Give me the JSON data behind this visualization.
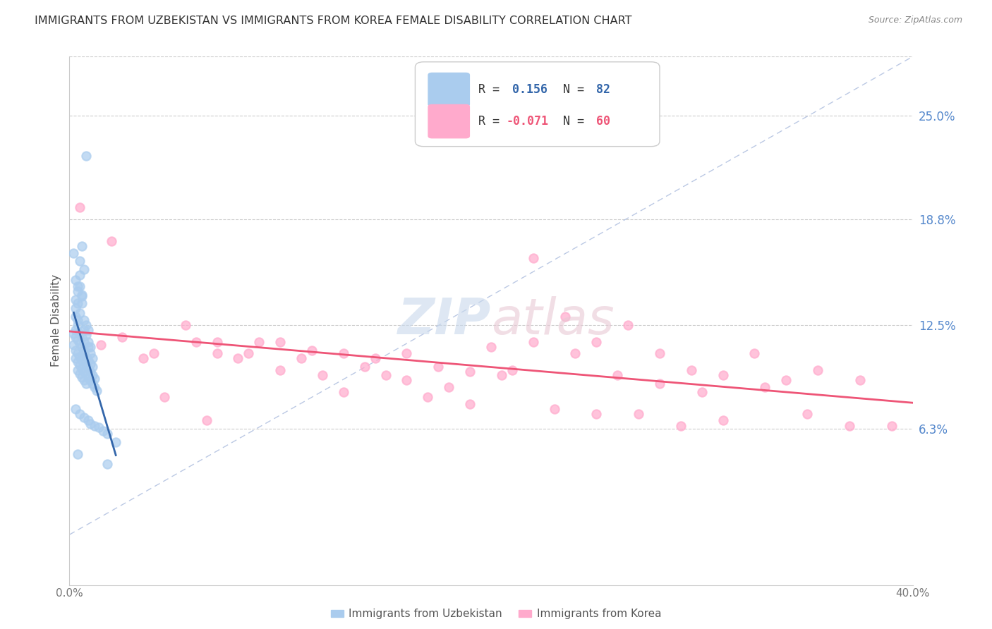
{
  "title": "IMMIGRANTS FROM UZBEKISTAN VS IMMIGRANTS FROM KOREA FEMALE DISABILITY CORRELATION CHART",
  "source": "Source: ZipAtlas.com",
  "ylabel": "Female Disability",
  "ytick_labels": [
    "25.0%",
    "18.8%",
    "12.5%",
    "6.3%"
  ],
  "ytick_values": [
    0.25,
    0.188,
    0.125,
    0.063
  ],
  "xmin": 0.0,
  "xmax": 0.4,
  "ymin": -0.03,
  "ymax": 0.285,
  "legend_r_uzbekistan": "R =  0.156",
  "legend_n_uzbekistan": "N = 82",
  "legend_r_korea": "R = -0.071",
  "legend_n_korea": "N = 60",
  "color_uzbekistan": "#aaccee",
  "color_korea": "#ffaacc",
  "color_uzbekistan_line": "#3366aa",
  "color_korea_line": "#ee5577",
  "color_diagonal_dashed": "#aabbdd",
  "background_color": "#ffffff",
  "legend_r_color_uzbekistan": "#3366aa",
  "legend_n_color_uzbekistan": "#3366aa",
  "legend_r_color_korea": "#ee5577",
  "legend_n_color_korea": "#ee5577",
  "watermark_color": "#dde8f5",
  "uzbekistan_x": [
    0.008,
    0.006,
    0.005,
    0.004,
    0.006,
    0.004,
    0.003,
    0.002,
    0.005,
    0.007,
    0.003,
    0.005,
    0.006,
    0.004,
    0.003,
    0.005,
    0.006,
    0.007,
    0.008,
    0.009,
    0.003,
    0.004,
    0.004,
    0.003,
    0.005,
    0.006,
    0.007,
    0.008,
    0.009,
    0.01,
    0.002,
    0.003,
    0.004,
    0.005,
    0.006,
    0.007,
    0.007,
    0.009,
    0.01,
    0.011,
    0.002,
    0.003,
    0.004,
    0.005,
    0.006,
    0.007,
    0.008,
    0.009,
    0.01,
    0.011,
    0.003,
    0.004,
    0.005,
    0.006,
    0.007,
    0.008,
    0.009,
    0.01,
    0.011,
    0.012,
    0.004,
    0.005,
    0.006,
    0.007,
    0.008,
    0.009,
    0.01,
    0.011,
    0.012,
    0.013,
    0.003,
    0.005,
    0.007,
    0.009,
    0.01,
    0.012,
    0.014,
    0.016,
    0.018,
    0.022,
    0.004,
    0.018
  ],
  "uzbekistan_y": [
    0.226,
    0.172,
    0.155,
    0.148,
    0.143,
    0.138,
    0.152,
    0.168,
    0.163,
    0.158,
    0.135,
    0.148,
    0.142,
    0.145,
    0.14,
    0.132,
    0.138,
    0.128,
    0.125,
    0.122,
    0.13,
    0.128,
    0.125,
    0.122,
    0.12,
    0.118,
    0.122,
    0.119,
    0.115,
    0.112,
    0.12,
    0.118,
    0.116,
    0.114,
    0.112,
    0.11,
    0.115,
    0.112,
    0.108,
    0.105,
    0.113,
    0.11,
    0.108,
    0.106,
    0.104,
    0.108,
    0.106,
    0.104,
    0.102,
    0.1,
    0.105,
    0.103,
    0.101,
    0.099,
    0.097,
    0.101,
    0.099,
    0.097,
    0.095,
    0.093,
    0.098,
    0.096,
    0.094,
    0.092,
    0.09,
    0.094,
    0.092,
    0.09,
    0.088,
    0.086,
    0.075,
    0.072,
    0.07,
    0.068,
    0.066,
    0.065,
    0.064,
    0.062,
    0.06,
    0.055,
    0.048,
    0.042
  ],
  "korea_x": [
    0.005,
    0.02,
    0.04,
    0.055,
    0.07,
    0.085,
    0.1,
    0.115,
    0.13,
    0.145,
    0.16,
    0.175,
    0.19,
    0.205,
    0.22,
    0.235,
    0.25,
    0.265,
    0.28,
    0.295,
    0.31,
    0.325,
    0.34,
    0.355,
    0.37,
    0.015,
    0.035,
    0.06,
    0.08,
    0.1,
    0.12,
    0.14,
    0.16,
    0.18,
    0.2,
    0.22,
    0.24,
    0.26,
    0.28,
    0.3,
    0.07,
    0.09,
    0.11,
    0.13,
    0.15,
    0.17,
    0.19,
    0.21,
    0.23,
    0.25,
    0.27,
    0.29,
    0.31,
    0.33,
    0.35,
    0.375,
    0.025,
    0.045,
    0.065,
    0.39
  ],
  "korea_y": [
    0.195,
    0.175,
    0.108,
    0.125,
    0.115,
    0.108,
    0.115,
    0.11,
    0.108,
    0.105,
    0.108,
    0.1,
    0.097,
    0.095,
    0.165,
    0.13,
    0.115,
    0.125,
    0.108,
    0.098,
    0.095,
    0.108,
    0.092,
    0.098,
    0.065,
    0.113,
    0.105,
    0.115,
    0.105,
    0.098,
    0.095,
    0.1,
    0.092,
    0.088,
    0.112,
    0.115,
    0.108,
    0.095,
    0.09,
    0.085,
    0.108,
    0.115,
    0.105,
    0.085,
    0.095,
    0.082,
    0.078,
    0.098,
    0.075,
    0.072,
    0.072,
    0.065,
    0.068,
    0.088,
    0.072,
    0.092,
    0.118,
    0.082,
    0.068,
    0.065
  ]
}
